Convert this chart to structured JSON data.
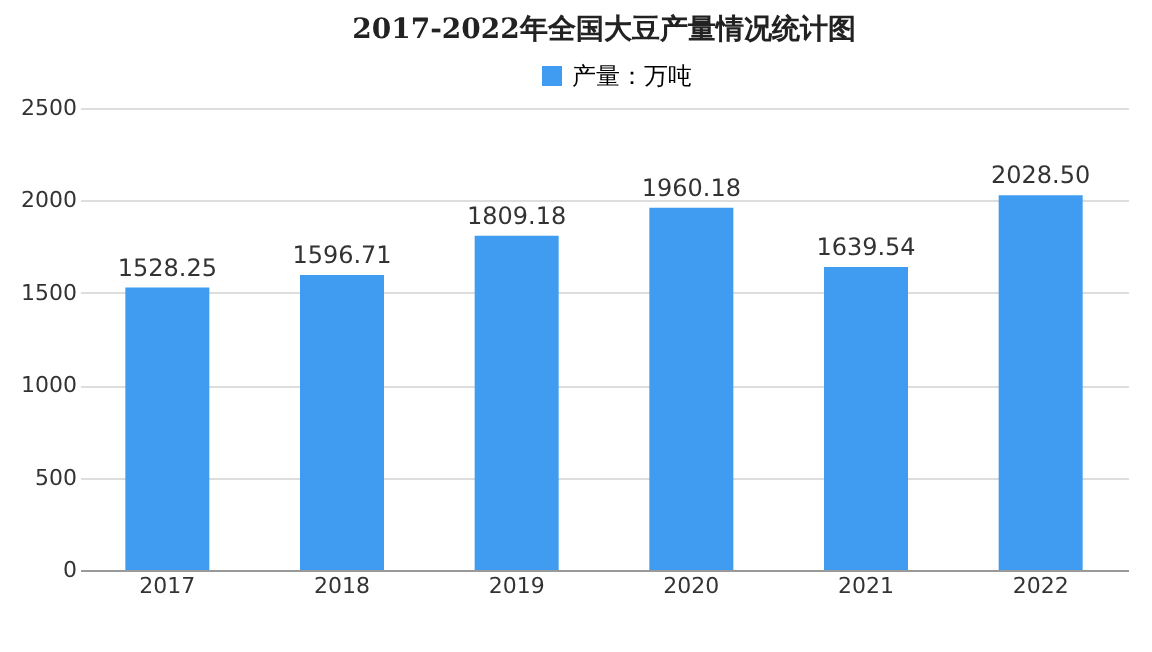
{
  "chart_data": {
    "type": "bar",
    "title": "2017-2022年全国大豆产量情况统计图",
    "categories": [
      "2017",
      "2018",
      "2019",
      "2020",
      "2021",
      "2022"
    ],
    "series": [
      {
        "name": "产量：万吨",
        "color": "#3f9cf0",
        "values": [
          1528.25,
          1596.71,
          1809.18,
          1960.18,
          1639.54,
          2028.5
        ]
      }
    ],
    "value_labels": [
      "1528.25",
      "1596.71",
      "1809.18",
      "1960.18",
      "1639.54",
      "2028.50"
    ],
    "ylim": [
      0,
      2500
    ],
    "yticks": [
      0,
      500,
      1000,
      1500,
      2000,
      2500
    ],
    "grid": "y",
    "legend": "top"
  }
}
